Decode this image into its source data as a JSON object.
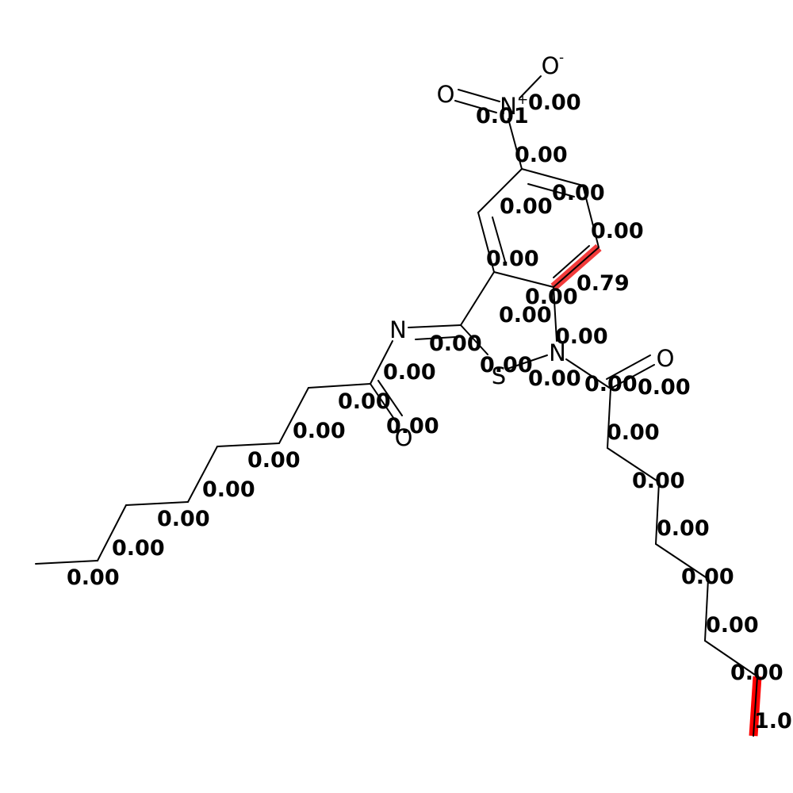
{
  "colors": {
    "bond": "#000000",
    "highlight": "#ff0000",
    "highlight_soft": "#f23a3a",
    "background": "#ffffff"
  },
  "atoms": [
    {
      "symbol": "O"
    },
    {
      "symbol": "O",
      "charge": "-"
    },
    {
      "symbol": "N",
      "charge": "+"
    },
    {
      "symbol": "N"
    },
    {
      "symbol": "N"
    },
    {
      "symbol": "S"
    },
    {
      "symbol": "O"
    },
    {
      "symbol": "O"
    }
  ],
  "bond_scores": [
    "0.01",
    "0.00",
    "0.00",
    "0.00",
    "0.00",
    "0.00",
    "0.00",
    "0.79",
    "0.00",
    "0.00",
    "0.00",
    "0.00",
    "0.00",
    "0.00",
    "0.00",
    "0.00",
    "0.00",
    "0.00",
    "0.00",
    "0.00",
    "0.00",
    "0.00",
    "0.00",
    "0.00",
    "0.00",
    "0.00",
    "0.00",
    "0.00",
    "0.00",
    "0.00",
    "0.00",
    "1.00"
  ]
}
